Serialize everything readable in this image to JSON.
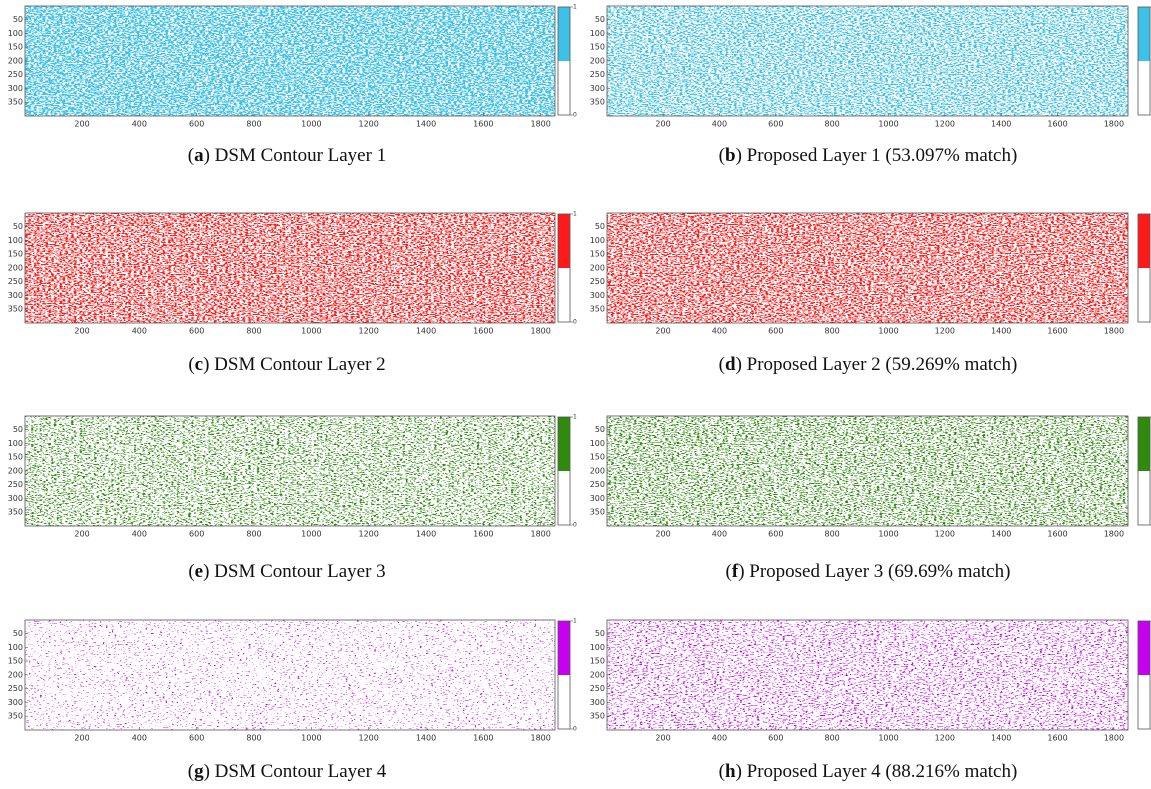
{
  "figure": {
    "xlim": [
      1,
      1850
    ],
    "ylim": [
      1,
      400
    ],
    "x_ticks": [
      200,
      400,
      600,
      800,
      1000,
      1200,
      1400,
      1600,
      1800
    ],
    "y_ticks": [
      50,
      100,
      150,
      200,
      250,
      300,
      350
    ],
    "colorbar_ticks": [
      0,
      1
    ],
    "panels": [
      {
        "caption": [
          "(",
          "a",
          ") DSM Contour Layer 1"
        ],
        "color": "#3ec1e6"
      },
      {
        "caption": [
          "(",
          "b",
          ") Proposed Layer 1 (53.097% match)"
        ],
        "color": "#3ec1e6"
      },
      {
        "caption": [
          "(",
          "c",
          ") DSM Contour Layer 2"
        ],
        "color": "#ff1a1a"
      },
      {
        "caption": [
          "(",
          "d",
          ") Proposed Layer 2 (59.269% match)"
        ],
        "color": "#ff1a1a"
      },
      {
        "caption": [
          "(",
          "e",
          ") DSM Contour Layer 3"
        ],
        "color": "#2f8a0e"
      },
      {
        "caption": [
          "(",
          "f",
          ") Proposed Layer 3 (69.69% match)"
        ],
        "color": "#2f8a0e"
      },
      {
        "caption": [
          "(",
          "g",
          ") DSM Contour Layer 4"
        ],
        "color": "#c800f0"
      },
      {
        "caption": [
          "(",
          "h",
          ") Proposed Layer 4 (88.216% match)"
        ],
        "color": "#c800f0"
      }
    ]
  }
}
